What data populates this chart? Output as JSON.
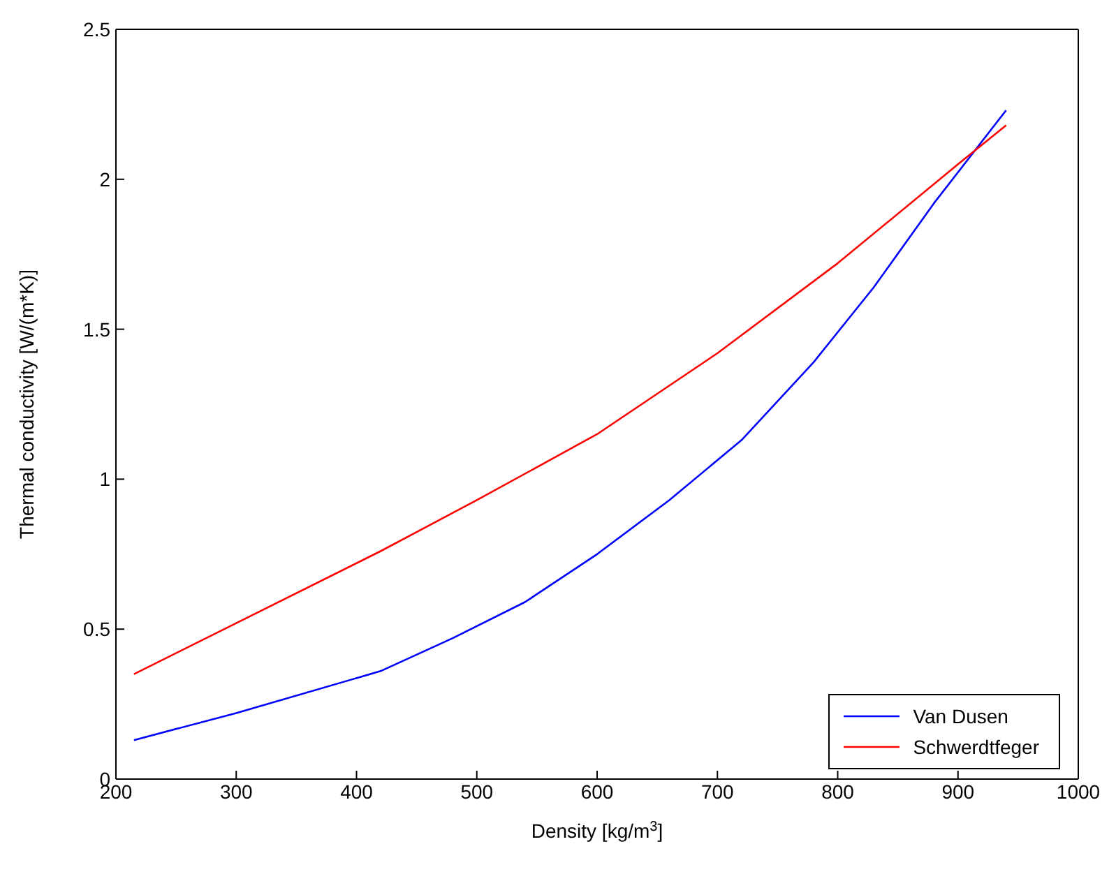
{
  "chart_data": {
    "type": "line",
    "xlabel": "Density [kg/m$^{3}$]",
    "ylabel": "Thermal conductivity [W/(m*K)]",
    "xlim": [
      200,
      1000
    ],
    "xticks": [
      200,
      300,
      400,
      500,
      600,
      700,
      800,
      900,
      1000
    ],
    "ylim": [
      0,
      2.5
    ],
    "yticks": [
      0,
      0.5,
      1,
      1.5,
      2,
      2.5
    ],
    "legend": "bottom right",
    "grid": false,
    "marker": "none",
    "line_style": "solid",
    "series": [
      {
        "name": "Van Dusen",
        "color": "#0000ff",
        "x": [
          215,
          300,
          420,
          480,
          540,
          600,
          660,
          720,
          780,
          830,
          880,
          940
        ],
        "values": [
          0.13,
          0.22,
          0.36,
          0.47,
          0.59,
          0.75,
          0.93,
          1.13,
          1.39,
          1.64,
          1.92,
          2.23
        ]
      },
      {
        "name": "Schwerdtfeger",
        "color": "#ff0000",
        "x": [
          215,
          300,
          420,
          500,
          600,
          700,
          800,
          900,
          940
        ],
        "values": [
          0.35,
          0.52,
          0.76,
          0.93,
          1.15,
          1.42,
          1.72,
          2.05,
          2.18
        ]
      }
    ]
  }
}
